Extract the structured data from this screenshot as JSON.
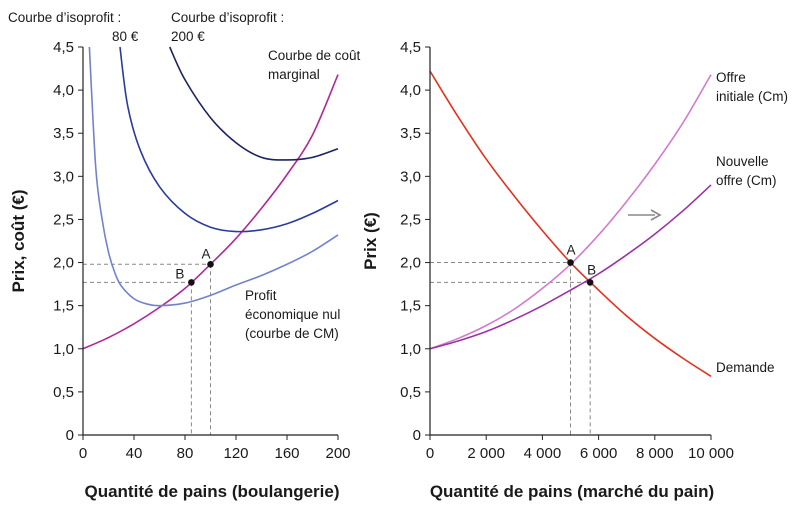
{
  "chart_data": [
    {
      "type": "line",
      "xlabel": "Quantité de pains (boulangerie)",
      "ylabel": "Prix, coût (€)",
      "xlim": [
        0,
        200
      ],
      "ylim": [
        0,
        4.5
      ],
      "xticks": [
        0,
        40,
        80,
        120,
        160,
        200
      ],
      "xtick_labels": [
        "0",
        "40",
        "80",
        "120",
        "160",
        "200"
      ],
      "yticks": [
        0,
        0.5,
        1,
        1.5,
        2,
        2.5,
        3,
        3.5,
        4,
        4.5
      ],
      "ytick_labels": [
        "0",
        "0,5",
        "1,0",
        "1,5",
        "2,0",
        "2,5",
        "3,0",
        "3,5",
        "4,0",
        "4,5"
      ],
      "colors": {
        "mc": "#b0289a",
        "iso80": "#2b3a9e",
        "iso200": "#1b2560",
        "avgcost": "#7382cc",
        "guide": "#888888",
        "axis": "#222222"
      },
      "series": [
        {
          "key": "mc",
          "name": "Courbe de coût marginal",
          "x": [
            0,
            20,
            40,
            60,
            80,
            100,
            120,
            140,
            160,
            180,
            200
          ],
          "y": [
            1.0,
            1.13,
            1.29,
            1.48,
            1.7,
            1.98,
            2.28,
            2.63,
            3.02,
            3.48,
            4.18
          ]
        },
        {
          "key": "iso80",
          "name": "Courbe d'isoprofit : 80 €",
          "x": [
            29,
            35,
            45,
            60,
            80,
            100,
            120,
            140,
            160,
            180,
            200
          ],
          "y": [
            4.5,
            3.82,
            3.3,
            2.88,
            2.57,
            2.41,
            2.36,
            2.38,
            2.45,
            2.57,
            2.72
          ]
        },
        {
          "key": "iso200",
          "name": "Courbe d'isoprofit : 200 €",
          "x": [
            68,
            80,
            100,
            120,
            140,
            160,
            180,
            200
          ],
          "y": [
            4.5,
            4.12,
            3.68,
            3.39,
            3.22,
            3.19,
            3.22,
            3.32
          ]
        },
        {
          "key": "avgcost",
          "name": "Profit économique nul (courbe de CM)",
          "x": [
            5,
            10,
            15,
            20,
            25,
            30,
            40,
            50,
            60,
            80,
            100,
            120,
            140,
            160,
            180,
            200
          ],
          "y": [
            4.5,
            3.1,
            2.5,
            2.12,
            1.88,
            1.73,
            1.58,
            1.52,
            1.5,
            1.53,
            1.62,
            1.74,
            1.85,
            1.98,
            2.13,
            2.32
          ]
        }
      ],
      "points": [
        {
          "label": "A",
          "x": 100,
          "y": 1.98
        },
        {
          "label": "B",
          "x": 85,
          "y": 1.77
        }
      ],
      "annotations": {
        "iso80_title": "Courbe d’isoprofit :",
        "iso80_value": "80 €",
        "iso200_title": "Courbe d’isoprofit :",
        "iso200_value": "200 €",
        "mc_line1": "Courbe de coût",
        "mc_line2": "marginal",
        "avg_line1": "Profit",
        "avg_line2": "économique nul",
        "avg_line3": "(courbe de CM)"
      }
    },
    {
      "type": "line",
      "xlabel": "Quantité de pains (marché du pain)",
      "ylabel": "Prix (€)",
      "xlim": [
        0,
        10000
      ],
      "ylim": [
        0,
        4.5
      ],
      "xticks": [
        0,
        2000,
        4000,
        6000,
        8000,
        10000
      ],
      "xtick_labels": [
        "0",
        "2 000",
        "4 000",
        "6 000",
        "8 000",
        "10 000"
      ],
      "yticks": [
        0,
        0.5,
        1,
        1.5,
        2,
        2.5,
        3,
        3.5,
        4,
        4.5
      ],
      "ytick_labels": [
        "0",
        "0,5",
        "1,0",
        "1,5",
        "2,0",
        "2,5",
        "3,0",
        "3,5",
        "4,0",
        "4,5"
      ],
      "colors": {
        "demand": "#e2321f",
        "supply_initial": "#d47ad0",
        "supply_new": "#9b33a8",
        "guide": "#888888",
        "axis": "#222222",
        "arrow": "#888888"
      },
      "series": [
        {
          "key": "demand",
          "name": "Demande",
          "x": [
            0,
            1000,
            2000,
            3000,
            4000,
            5000,
            6000,
            7000,
            8000,
            9000,
            10000
          ],
          "y": [
            4.22,
            3.69,
            3.2,
            2.77,
            2.37,
            2.0,
            1.68,
            1.38,
            1.12,
            0.89,
            0.68
          ]
        },
        {
          "key": "supply_initial",
          "name": "Offre initiale (Cm)",
          "x": [
            0,
            1000,
            2000,
            3000,
            4000,
            5000,
            6000,
            7000,
            8000,
            9000,
            10000
          ],
          "y": [
            1.0,
            1.12,
            1.27,
            1.46,
            1.7,
            1.98,
            2.32,
            2.71,
            3.14,
            3.62,
            4.18
          ]
        },
        {
          "key": "supply_new",
          "name": "Nouvelle offre (Cm)",
          "x": [
            0,
            1000,
            2000,
            3000,
            4000,
            5000,
            6000,
            7000,
            8000,
            9000,
            10000
          ],
          "y": [
            1.0,
            1.09,
            1.2,
            1.34,
            1.5,
            1.68,
            1.87,
            2.09,
            2.33,
            2.6,
            2.9
          ]
        }
      ],
      "points": [
        {
          "label": "A",
          "x": 5000,
          "y": 2.0
        },
        {
          "label": "B",
          "x": 5700,
          "y": 1.77
        }
      ],
      "annotations": {
        "supply_initial_line1": "Offre",
        "supply_initial_line2": "initiale (Cm)",
        "supply_new_line1": "Nouvelle",
        "supply_new_line2": "offre (Cm)",
        "demand_label": "Demande"
      }
    }
  ]
}
